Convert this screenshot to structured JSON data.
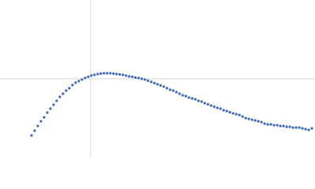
{
  "chart_data": {
    "type": "scatter",
    "color": "#3b67b4",
    "grid": true,
    "xlim": [
      0,
      400
    ],
    "ylim": [
      0,
      200
    ],
    "xticks": [
      115
    ],
    "yticks": [
      100
    ],
    "x": [
      40,
      44,
      48,
      52,
      56,
      60,
      64,
      68,
      72,
      76,
      80,
      84,
      88,
      92,
      96,
      100,
      104,
      108,
      112,
      116,
      120,
      124,
      128,
      132,
      136,
      140,
      144,
      148,
      152,
      156,
      160,
      164,
      168,
      172,
      176,
      180,
      184,
      188,
      192,
      196,
      200,
      204,
      208,
      212,
      216,
      220,
      224,
      228,
      232,
      236,
      240,
      244,
      248,
      252,
      256,
      260,
      264,
      268,
      272,
      276,
      280,
      284,
      288,
      292,
      296,
      300,
      304,
      308,
      312,
      316,
      320,
      324,
      328,
      332,
      336,
      340,
      344,
      348,
      352,
      356,
      360,
      364,
      368,
      372,
      376,
      380,
      384,
      388,
      392,
      396
    ],
    "values": [
      28,
      34,
      40,
      46,
      51,
      57,
      62,
      67,
      72,
      77,
      81,
      85,
      88,
      92,
      95,
      97,
      99,
      101,
      102.5,
      104,
      105,
      106,
      106.5,
      107,
      107,
      107,
      106.5,
      106,
      105.5,
      105,
      104,
      103,
      102.5,
      101.5,
      101,
      100,
      99,
      97.5,
      96,
      94.5,
      93,
      91.5,
      90,
      88,
      86,
      85,
      83,
      81,
      79,
      78,
      76,
      75,
      74,
      72,
      71,
      69,
      67.5,
      66,
      64.5,
      63,
      62,
      60,
      59,
      57.5,
      56,
      55,
      54,
      52,
      50,
      49,
      48,
      47,
      46,
      45,
      43,
      42,
      42,
      41,
      41,
      40,
      40,
      39,
      39,
      38,
      38,
      38,
      37,
      36,
      35,
      37
    ]
  }
}
